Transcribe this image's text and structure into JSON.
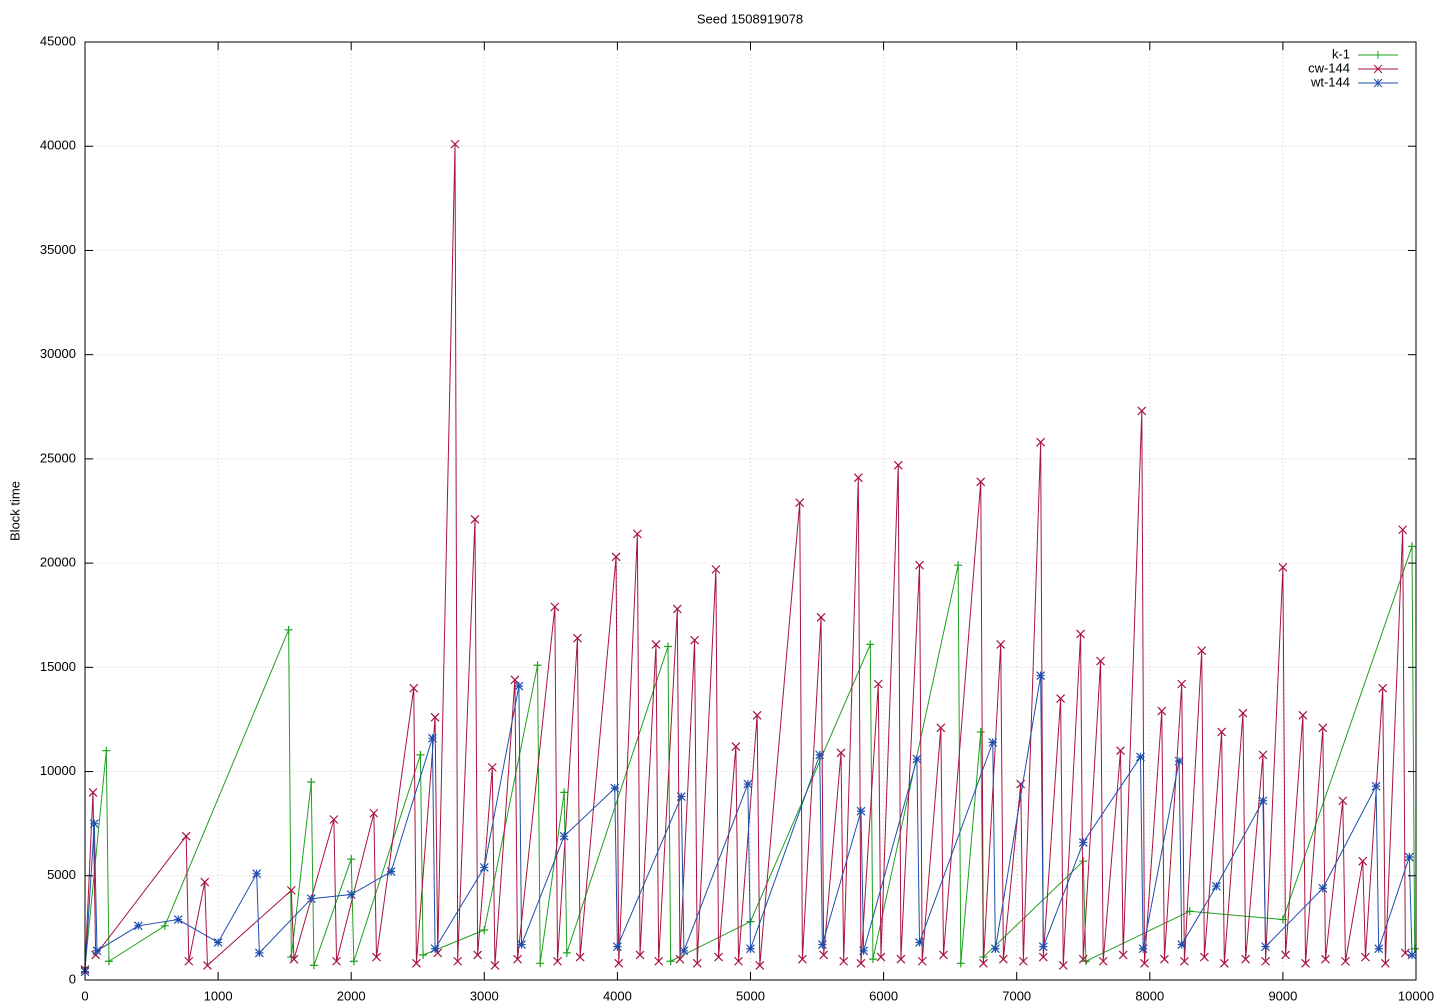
{
  "chart_data": {
    "type": "line",
    "title": "Seed 1508919078",
    "y_label": "Block time",
    "xlim": [
      0,
      10000
    ],
    "xticks": [
      0,
      1000,
      2000,
      3000,
      4000,
      5000,
      6000,
      7000,
      8000,
      9000,
      10000
    ],
    "ylim": [
      0,
      45000
    ],
    "yticks": [
      0,
      5000,
      10000,
      15000,
      20000,
      25000,
      30000,
      35000,
      40000,
      45000
    ],
    "grid": true,
    "legend": "top-right",
    "series": [
      {
        "name": "k-1",
        "color": "#1ea01e",
        "marker": "plus",
        "x": [
          0,
          160,
          180,
          600,
          1530,
          1550,
          1700,
          1720,
          2000,
          2020,
          2520,
          2540,
          3000,
          3400,
          3420,
          3600,
          3620,
          4380,
          4400,
          5000,
          5900,
          5920,
          6560,
          6580,
          6730,
          6750,
          7500,
          7520,
          8300,
          9000,
          9970,
          9990
        ],
        "values": [
          600,
          11000,
          900,
          2600,
          16800,
          1100,
          9500,
          700,
          5800,
          900,
          10800,
          1200,
          2400,
          15100,
          800,
          9000,
          1300,
          16000,
          900,
          2800,
          16100,
          1000,
          19900,
          800,
          11900,
          1100,
          5700,
          900,
          3300,
          2900,
          20800,
          1500
        ]
      },
      {
        "name": "cw-144",
        "color": "#a8123e",
        "marker": "cross",
        "x": [
          0,
          60,
          80,
          760,
          780,
          900,
          920,
          1550,
          1570,
          1870,
          1890,
          2170,
          2190,
          2470,
          2490,
          2630,
          2650,
          2780,
          2800,
          2930,
          2950,
          3060,
          3080,
          3230,
          3250,
          3530,
          3550,
          3700,
          3720,
          3990,
          4010,
          4150,
          4170,
          4290,
          4310,
          4450,
          4470,
          4580,
          4600,
          4740,
          4760,
          4890,
          4910,
          5050,
          5070,
          5370,
          5390,
          5530,
          5550,
          5680,
          5700,
          5810,
          5830,
          5960,
          5980,
          6110,
          6130,
          6270,
          6290,
          6430,
          6450,
          6730,
          6750,
          6880,
          6900,
          7030,
          7050,
          7180,
          7200,
          7330,
          7350,
          7480,
          7500,
          7630,
          7650,
          7780,
          7800,
          7940,
          7960,
          8090,
          8110,
          8240,
          8260,
          8390,
          8410,
          8540,
          8560,
          8700,
          8720,
          8850,
          8870,
          9000,
          9020,
          9150,
          9170,
          9300,
          9320,
          9450,
          9470,
          9600,
          9620,
          9750,
          9770,
          9900,
          9920
        ],
        "values": [
          500,
          9000,
          1200,
          6900,
          900,
          4700,
          700,
          4300,
          1000,
          7700,
          900,
          8000,
          1100,
          14000,
          800,
          12600,
          1300,
          40100,
          900,
          22100,
          1200,
          10200,
          700,
          14400,
          1000,
          17900,
          900,
          16400,
          1100,
          20300,
          800,
          21400,
          1200,
          16100,
          900,
          17800,
          1000,
          16300,
          800,
          19700,
          1100,
          11200,
          900,
          12700,
          700,
          22900,
          1000,
          17400,
          1200,
          10900,
          900,
          24100,
          800,
          14200,
          1100,
          24700,
          1000,
          19900,
          900,
          12100,
          1200,
          23900,
          800,
          16100,
          1000,
          9400,
          900,
          25800,
          1100,
          13500,
          700,
          16600,
          1000,
          15300,
          900,
          11000,
          1200,
          27300,
          800,
          12900,
          1000,
          14200,
          900,
          15800,
          1100,
          11900,
          800,
          12800,
          1000,
          10800,
          900,
          19800,
          1200,
          12700,
          800,
          12100,
          1000,
          8600,
          900,
          5700,
          1100,
          14000,
          800,
          21600,
          1300
        ]
      },
      {
        "name": "wt-144",
        "color": "#1f4fae",
        "marker": "star",
        "x": [
          0,
          70,
          90,
          400,
          700,
          1000,
          1290,
          1310,
          1700,
          2000,
          2300,
          2610,
          2630,
          3000,
          3260,
          3280,
          3600,
          3980,
          4000,
          4480,
          4500,
          4980,
          5000,
          5520,
          5540,
          5830,
          5850,
          6250,
          6270,
          6820,
          6840,
          7180,
          7200,
          7500,
          7930,
          7950,
          8220,
          8240,
          8500,
          8850,
          8870,
          9300,
          9700,
          9720,
          9950,
          9970
        ],
        "values": [
          400,
          7500,
          1400,
          2600,
          2900,
          1800,
          5100,
          1300,
          3900,
          4100,
          5200,
          11600,
          1500,
          5400,
          14100,
          1700,
          6900,
          9200,
          1600,
          8800,
          1400,
          9400,
          1500,
          10800,
          1700,
          8100,
          1400,
          10600,
          1800,
          11400,
          1500,
          14600,
          1600,
          6600,
          10700,
          1500,
          10500,
          1700,
          4500,
          8600,
          1600,
          4400,
          9300,
          1500,
          5900,
          1200
        ]
      }
    ]
  }
}
